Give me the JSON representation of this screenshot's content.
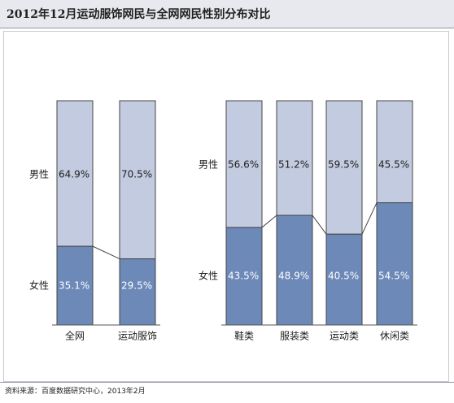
{
  "title": "2012年12月运动服饰网民与全网网民性别分布对比",
  "source": "资料来源：百度数据研究中心，2013年2月",
  "colors": {
    "male": "#c3cbe0",
    "female": "#6c89b8",
    "border": "#444444"
  },
  "chart_data": [
    {
      "type": "bar",
      "stacked": true,
      "percent": true,
      "title": "",
      "xlabel": "",
      "ylabel": "",
      "ylim": [
        0,
        100
      ],
      "categories": [
        "全网",
        "运动服饰"
      ],
      "series": [
        {
          "name": "女性",
          "values": [
            35.1,
            29.5
          ]
        },
        {
          "name": "男性",
          "values": [
            64.9,
            70.5
          ]
        }
      ],
      "value_labels": {
        "女性": [
          "35.1%",
          "29.5%"
        ],
        "男性": [
          "64.9%",
          "70.5%"
        ]
      }
    },
    {
      "type": "bar",
      "stacked": true,
      "percent": true,
      "title": "",
      "xlabel": "",
      "ylabel": "",
      "ylim": [
        0,
        100
      ],
      "categories": [
        "鞋类",
        "服装类",
        "运动类",
        "休闲类"
      ],
      "series": [
        {
          "name": "女性",
          "values": [
            43.5,
            48.9,
            40.5,
            54.5
          ]
        },
        {
          "name": "男性",
          "values": [
            56.6,
            51.2,
            59.5,
            45.5
          ]
        }
      ],
      "value_labels": {
        "女性": [
          "43.5%",
          "48.9%",
          "40.5%",
          "54.5%"
        ],
        "男性": [
          "56.6%",
          "51.2%",
          "59.5%",
          "45.5%"
        ]
      }
    }
  ]
}
